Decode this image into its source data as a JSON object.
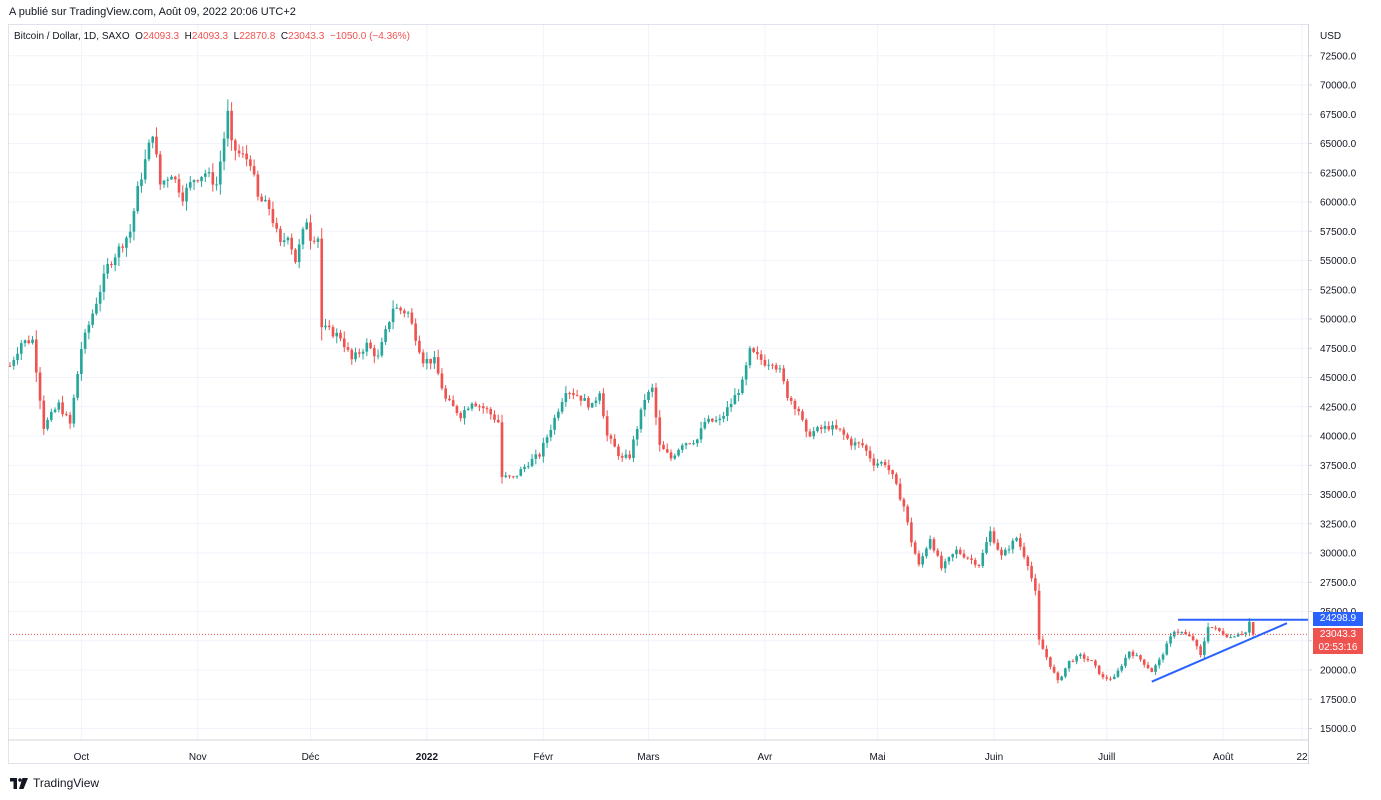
{
  "header": {
    "published": "A publié sur TradingView.com, Août 09, 2022 20:06 UTC+2"
  },
  "legend": {
    "symbol": "Bitcoin / Dollar, 1D, SAXO",
    "o_label": "O",
    "o_value": "24093.3",
    "h_label": "H",
    "h_value": "24093.3",
    "l_label": "L",
    "l_value": "22870.8",
    "c_label": "C",
    "c_value": "23043.3",
    "change": "−1050.0 (−4.36%)"
  },
  "price_axis": {
    "currency": "USD"
  },
  "tags": {
    "resistance_value": "24298.9",
    "last_price_value": "23043.3",
    "countdown": "02:53:16"
  },
  "footer": {
    "brand": "TradingView"
  },
  "colors": {
    "up": "#26a69a",
    "down": "#ef5350",
    "trendline": "#2962ff",
    "grid": "#f0f3fa",
    "text": "#131722"
  },
  "chart_data": {
    "type": "candlestick",
    "title": "Bitcoin / Dollar, 1D, SAXO",
    "ylabel": "USD",
    "ylim": [
      14000,
      74000
    ],
    "y_ticks": [
      "15000.0",
      "17500.0",
      "20000.0",
      "22500.0",
      "25000.0",
      "27500.0",
      "30000.0",
      "32500.0",
      "35000.0",
      "37500.0",
      "40000.0",
      "42500.0",
      "45000.0",
      "47500.0",
      "50000.0",
      "52500.0",
      "55000.0",
      "57500.0",
      "60000.0",
      "62500.0",
      "65000.0",
      "67500.0",
      "70000.0",
      "72500.0"
    ],
    "x_ticks": [
      {
        "label": "Oct",
        "date": "2021-10-01"
      },
      {
        "label": "Nov",
        "date": "2021-11-01"
      },
      {
        "label": "Déc",
        "date": "2021-12-01"
      },
      {
        "label": "2022",
        "date": "2022-01-01",
        "bold": true
      },
      {
        "label": "Févr",
        "date": "2022-02-01"
      },
      {
        "label": "Mars",
        "date": "2022-03-01"
      },
      {
        "label": "Avr",
        "date": "2022-04-01"
      },
      {
        "label": "Mai",
        "date": "2022-05-01"
      },
      {
        "label": "Juin",
        "date": "2022-06-01"
      },
      {
        "label": "Juill",
        "date": "2022-07-01"
      },
      {
        "label": "Août",
        "date": "2022-08-01"
      },
      {
        "label": "22",
        "date": "2022-08-22"
      }
    ],
    "x_range": [
      "2021-09-12",
      "2022-08-22"
    ],
    "anchors": [
      {
        "date": "2021-09-12",
        "price": 46000
      },
      {
        "date": "2021-09-15",
        "price": 48000
      },
      {
        "date": "2021-09-18",
        "price": 48200
      },
      {
        "date": "2021-09-21",
        "price": 40800
      },
      {
        "date": "2021-09-25",
        "price": 42700
      },
      {
        "date": "2021-09-28",
        "price": 41000
      },
      {
        "date": "2021-10-01",
        "price": 47500
      },
      {
        "date": "2021-10-05",
        "price": 51500
      },
      {
        "date": "2021-10-08",
        "price": 54500
      },
      {
        "date": "2021-10-12",
        "price": 56500
      },
      {
        "date": "2021-10-14",
        "price": 57500
      },
      {
        "date": "2021-10-16",
        "price": 61000
      },
      {
        "date": "2021-10-20",
        "price": 66000
      },
      {
        "date": "2021-10-22",
        "price": 61500
      },
      {
        "date": "2021-10-25",
        "price": 62500
      },
      {
        "date": "2021-10-28",
        "price": 60500
      },
      {
        "date": "2021-10-31",
        "price": 62000
      },
      {
        "date": "2021-11-03",
        "price": 62500
      },
      {
        "date": "2021-11-06",
        "price": 61500
      },
      {
        "date": "2021-11-09",
        "price": 67500
      },
      {
        "date": "2021-11-10",
        "price": 64800
      },
      {
        "date": "2021-11-12",
        "price": 64100
      },
      {
        "date": "2021-11-15",
        "price": 63500
      },
      {
        "date": "2021-11-17",
        "price": 60300
      },
      {
        "date": "2021-11-20",
        "price": 59500
      },
      {
        "date": "2021-11-23",
        "price": 56300
      },
      {
        "date": "2021-11-25",
        "price": 57300
      },
      {
        "date": "2021-11-27",
        "price": 55000
      },
      {
        "date": "2021-11-30",
        "price": 58500
      },
      {
        "date": "2021-12-01",
        "price": 57000
      },
      {
        "date": "2021-12-03",
        "price": 57000
      },
      {
        "date": "2021-12-04",
        "price": 49300
      },
      {
        "date": "2021-12-09",
        "price": 48500
      },
      {
        "date": "2021-12-12",
        "price": 46500
      },
      {
        "date": "2021-12-16",
        "price": 47800
      },
      {
        "date": "2021-12-19",
        "price": 46700
      },
      {
        "date": "2021-12-23",
        "price": 51000
      },
      {
        "date": "2021-12-27",
        "price": 50500
      },
      {
        "date": "2021-12-31",
        "price": 46500
      },
      {
        "date": "2022-01-03",
        "price": 46400
      },
      {
        "date": "2022-01-06",
        "price": 43100
      },
      {
        "date": "2022-01-10",
        "price": 41800
      },
      {
        "date": "2022-01-13",
        "price": 43000
      },
      {
        "date": "2022-01-17",
        "price": 42200
      },
      {
        "date": "2022-01-20",
        "price": 41200
      },
      {
        "date": "2022-01-21",
        "price": 36500
      },
      {
        "date": "2022-01-24",
        "price": 36400
      },
      {
        "date": "2022-01-28",
        "price": 37700
      },
      {
        "date": "2022-01-31",
        "price": 38400
      },
      {
        "date": "2022-02-04",
        "price": 41500
      },
      {
        "date": "2022-02-07",
        "price": 44000
      },
      {
        "date": "2022-02-10",
        "price": 43500
      },
      {
        "date": "2022-02-14",
        "price": 42500
      },
      {
        "date": "2022-02-16",
        "price": 43900
      },
      {
        "date": "2022-02-18",
        "price": 40000
      },
      {
        "date": "2022-02-22",
        "price": 38000
      },
      {
        "date": "2022-02-24",
        "price": 38300
      },
      {
        "date": "2022-02-28",
        "price": 43200
      },
      {
        "date": "2022-03-02",
        "price": 44000
      },
      {
        "date": "2022-03-04",
        "price": 39100
      },
      {
        "date": "2022-03-07",
        "price": 38100
      },
      {
        "date": "2022-03-10",
        "price": 39400
      },
      {
        "date": "2022-03-14",
        "price": 39700
      },
      {
        "date": "2022-03-16",
        "price": 41200
      },
      {
        "date": "2022-03-20",
        "price": 41300
      },
      {
        "date": "2022-03-23",
        "price": 42800
      },
      {
        "date": "2022-03-26",
        "price": 44500
      },
      {
        "date": "2022-03-28",
        "price": 47200
      },
      {
        "date": "2022-04-01",
        "price": 46300
      },
      {
        "date": "2022-04-03",
        "price": 46400
      },
      {
        "date": "2022-04-05",
        "price": 45500
      },
      {
        "date": "2022-04-07",
        "price": 43500
      },
      {
        "date": "2022-04-10",
        "price": 42200
      },
      {
        "date": "2022-04-12",
        "price": 40100
      },
      {
        "date": "2022-04-15",
        "price": 40500
      },
      {
        "date": "2022-04-18",
        "price": 40800
      },
      {
        "date": "2022-04-21",
        "price": 40400
      },
      {
        "date": "2022-04-24",
        "price": 39400
      },
      {
        "date": "2022-04-27",
        "price": 39200
      },
      {
        "date": "2022-04-30",
        "price": 37700
      },
      {
        "date": "2022-05-03",
        "price": 37700
      },
      {
        "date": "2022-05-05",
        "price": 36500
      },
      {
        "date": "2022-05-08",
        "price": 34000
      },
      {
        "date": "2022-05-10",
        "price": 31000
      },
      {
        "date": "2022-05-12",
        "price": 28900
      },
      {
        "date": "2022-05-15",
        "price": 31300
      },
      {
        "date": "2022-05-18",
        "price": 28700
      },
      {
        "date": "2022-05-22",
        "price": 30200
      },
      {
        "date": "2022-05-25",
        "price": 29600
      },
      {
        "date": "2022-05-28",
        "price": 29000
      },
      {
        "date": "2022-05-31",
        "price": 31800
      },
      {
        "date": "2022-06-03",
        "price": 29700
      },
      {
        "date": "2022-06-07",
        "price": 31300
      },
      {
        "date": "2022-06-10",
        "price": 29100
      },
      {
        "date": "2022-06-12",
        "price": 26600
      },
      {
        "date": "2022-06-13",
        "price": 22500
      },
      {
        "date": "2022-06-16",
        "price": 20400
      },
      {
        "date": "2022-06-18",
        "price": 19000
      },
      {
        "date": "2022-06-21",
        "price": 20700
      },
      {
        "date": "2022-06-24",
        "price": 21200
      },
      {
        "date": "2022-06-27",
        "price": 20700
      },
      {
        "date": "2022-06-30",
        "price": 19300
      },
      {
        "date": "2022-07-03",
        "price": 19300
      },
      {
        "date": "2022-07-07",
        "price": 21600
      },
      {
        "date": "2022-07-10",
        "price": 20900
      },
      {
        "date": "2022-07-13",
        "price": 19900
      },
      {
        "date": "2022-07-15",
        "price": 20800
      },
      {
        "date": "2022-07-19",
        "price": 23400
      },
      {
        "date": "2022-07-21",
        "price": 23200
      },
      {
        "date": "2022-07-24",
        "price": 22600
      },
      {
        "date": "2022-07-26",
        "price": 21200
      },
      {
        "date": "2022-07-28",
        "price": 23800
      },
      {
        "date": "2022-07-31",
        "price": 23300
      },
      {
        "date": "2022-08-03",
        "price": 22800
      },
      {
        "date": "2022-08-05",
        "price": 23200
      },
      {
        "date": "2022-08-07",
        "price": 23200
      },
      {
        "date": "2022-08-08",
        "price": 24093.3
      },
      {
        "date": "2022-08-09",
        "price": 23043.3
      }
    ],
    "last_bar": {
      "date": "2022-08-09",
      "open": 24093.3,
      "high": 24093.3,
      "low": 22870.8,
      "close": 23043.3
    },
    "drawings": {
      "resistance": {
        "price": 24298.9,
        "from": "2022-07-20"
      },
      "support_trendline": {
        "from": {
          "date": "2022-07-13",
          "price": 19000
        },
        "to": {
          "date": "2022-08-18",
          "price": 24000
        }
      }
    }
  }
}
